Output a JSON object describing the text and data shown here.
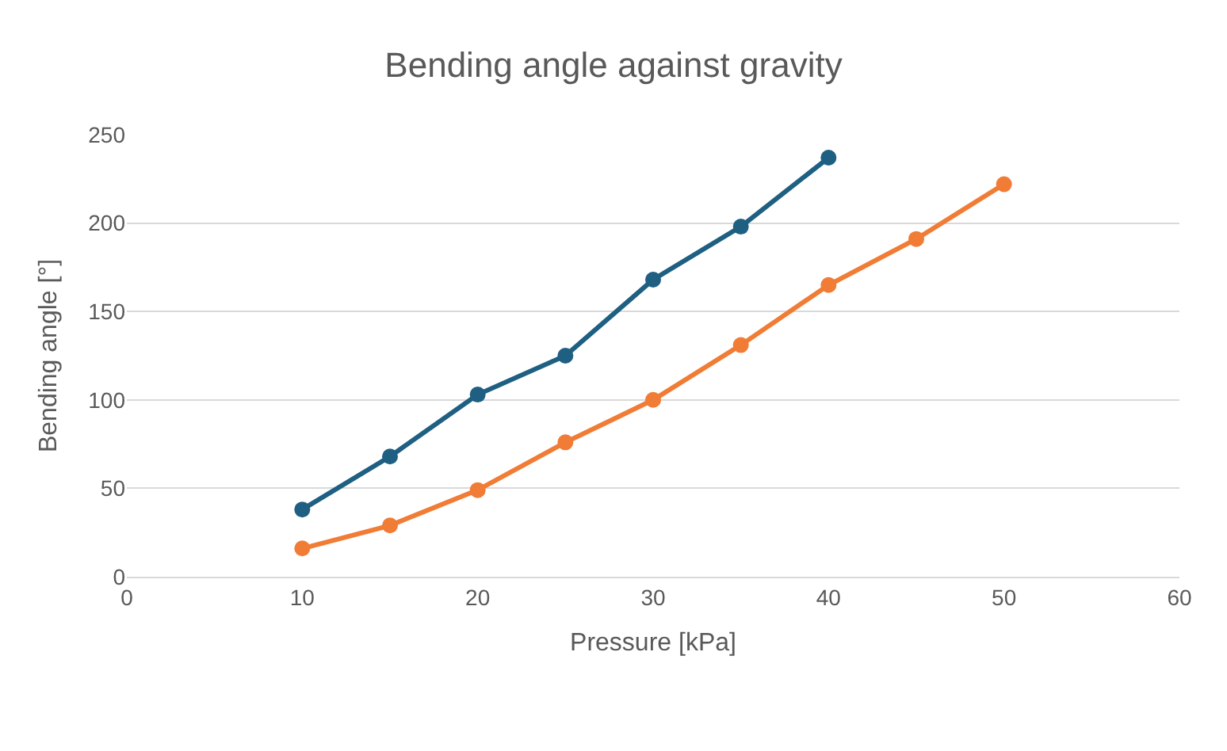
{
  "chart_data": {
    "type": "line",
    "title": "Bending angle against gravity",
    "xlabel": "Pressure [kPa]",
    "ylabel": "Bending angle [°]",
    "series": [
      {
        "color": "#1e5f82",
        "x": [
          10,
          15,
          20,
          25,
          30,
          35,
          40
        ],
        "values": [
          38,
          68,
          103,
          125,
          168,
          198,
          237
        ]
      },
      {
        "color": "#f07c35",
        "x": [
          10,
          15,
          20,
          25,
          30,
          35,
          40,
          45,
          50
        ],
        "values": [
          16,
          29,
          49,
          76,
          100,
          131,
          165,
          191,
          222
        ]
      }
    ],
    "xlim": [
      0,
      60
    ],
    "xticks": [
      0,
      10,
      20,
      30,
      40,
      50,
      60
    ],
    "ylim": [
      0,
      250
    ],
    "yticks": [
      0,
      50,
      100,
      150,
      200,
      250
    ],
    "grid": "y",
    "marker": "circle",
    "line_style": "solid"
  }
}
